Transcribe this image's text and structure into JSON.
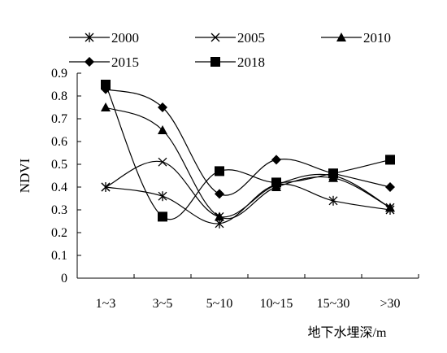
{
  "chart_data": {
    "type": "line",
    "title": "",
    "xlabel": "地下水埋深/m",
    "ylabel": "NDVI",
    "categories": [
      "1~3",
      "3~5",
      "5~10",
      "10~15",
      "15~30",
      ">30"
    ],
    "ylim": [
      0,
      0.9
    ],
    "yticks": [
      "0",
      "0.1",
      "0.2",
      "0.3",
      "0.4",
      "0.5",
      "0.6",
      "0.7",
      "0.8",
      "0.9"
    ],
    "grid": false,
    "legend_position": "top",
    "smooth": true,
    "series": [
      {
        "name": "2000",
        "marker": "asterisk",
        "values": [
          0.4,
          0.36,
          0.24,
          0.41,
          0.34,
          0.3
        ]
      },
      {
        "name": "2005",
        "marker": "x",
        "values": [
          0.4,
          0.51,
          0.27,
          0.41,
          0.45,
          0.31
        ]
      },
      {
        "name": "2010",
        "marker": "triangle",
        "values": [
          0.75,
          0.65,
          0.27,
          0.4,
          0.44,
          0.31
        ]
      },
      {
        "name": "2015",
        "marker": "diamond",
        "values": [
          0.83,
          0.75,
          0.37,
          0.52,
          0.46,
          0.4
        ]
      },
      {
        "name": "2018",
        "marker": "square",
        "values": [
          0.85,
          0.27,
          0.47,
          0.42,
          0.46,
          0.52
        ]
      }
    ]
  }
}
